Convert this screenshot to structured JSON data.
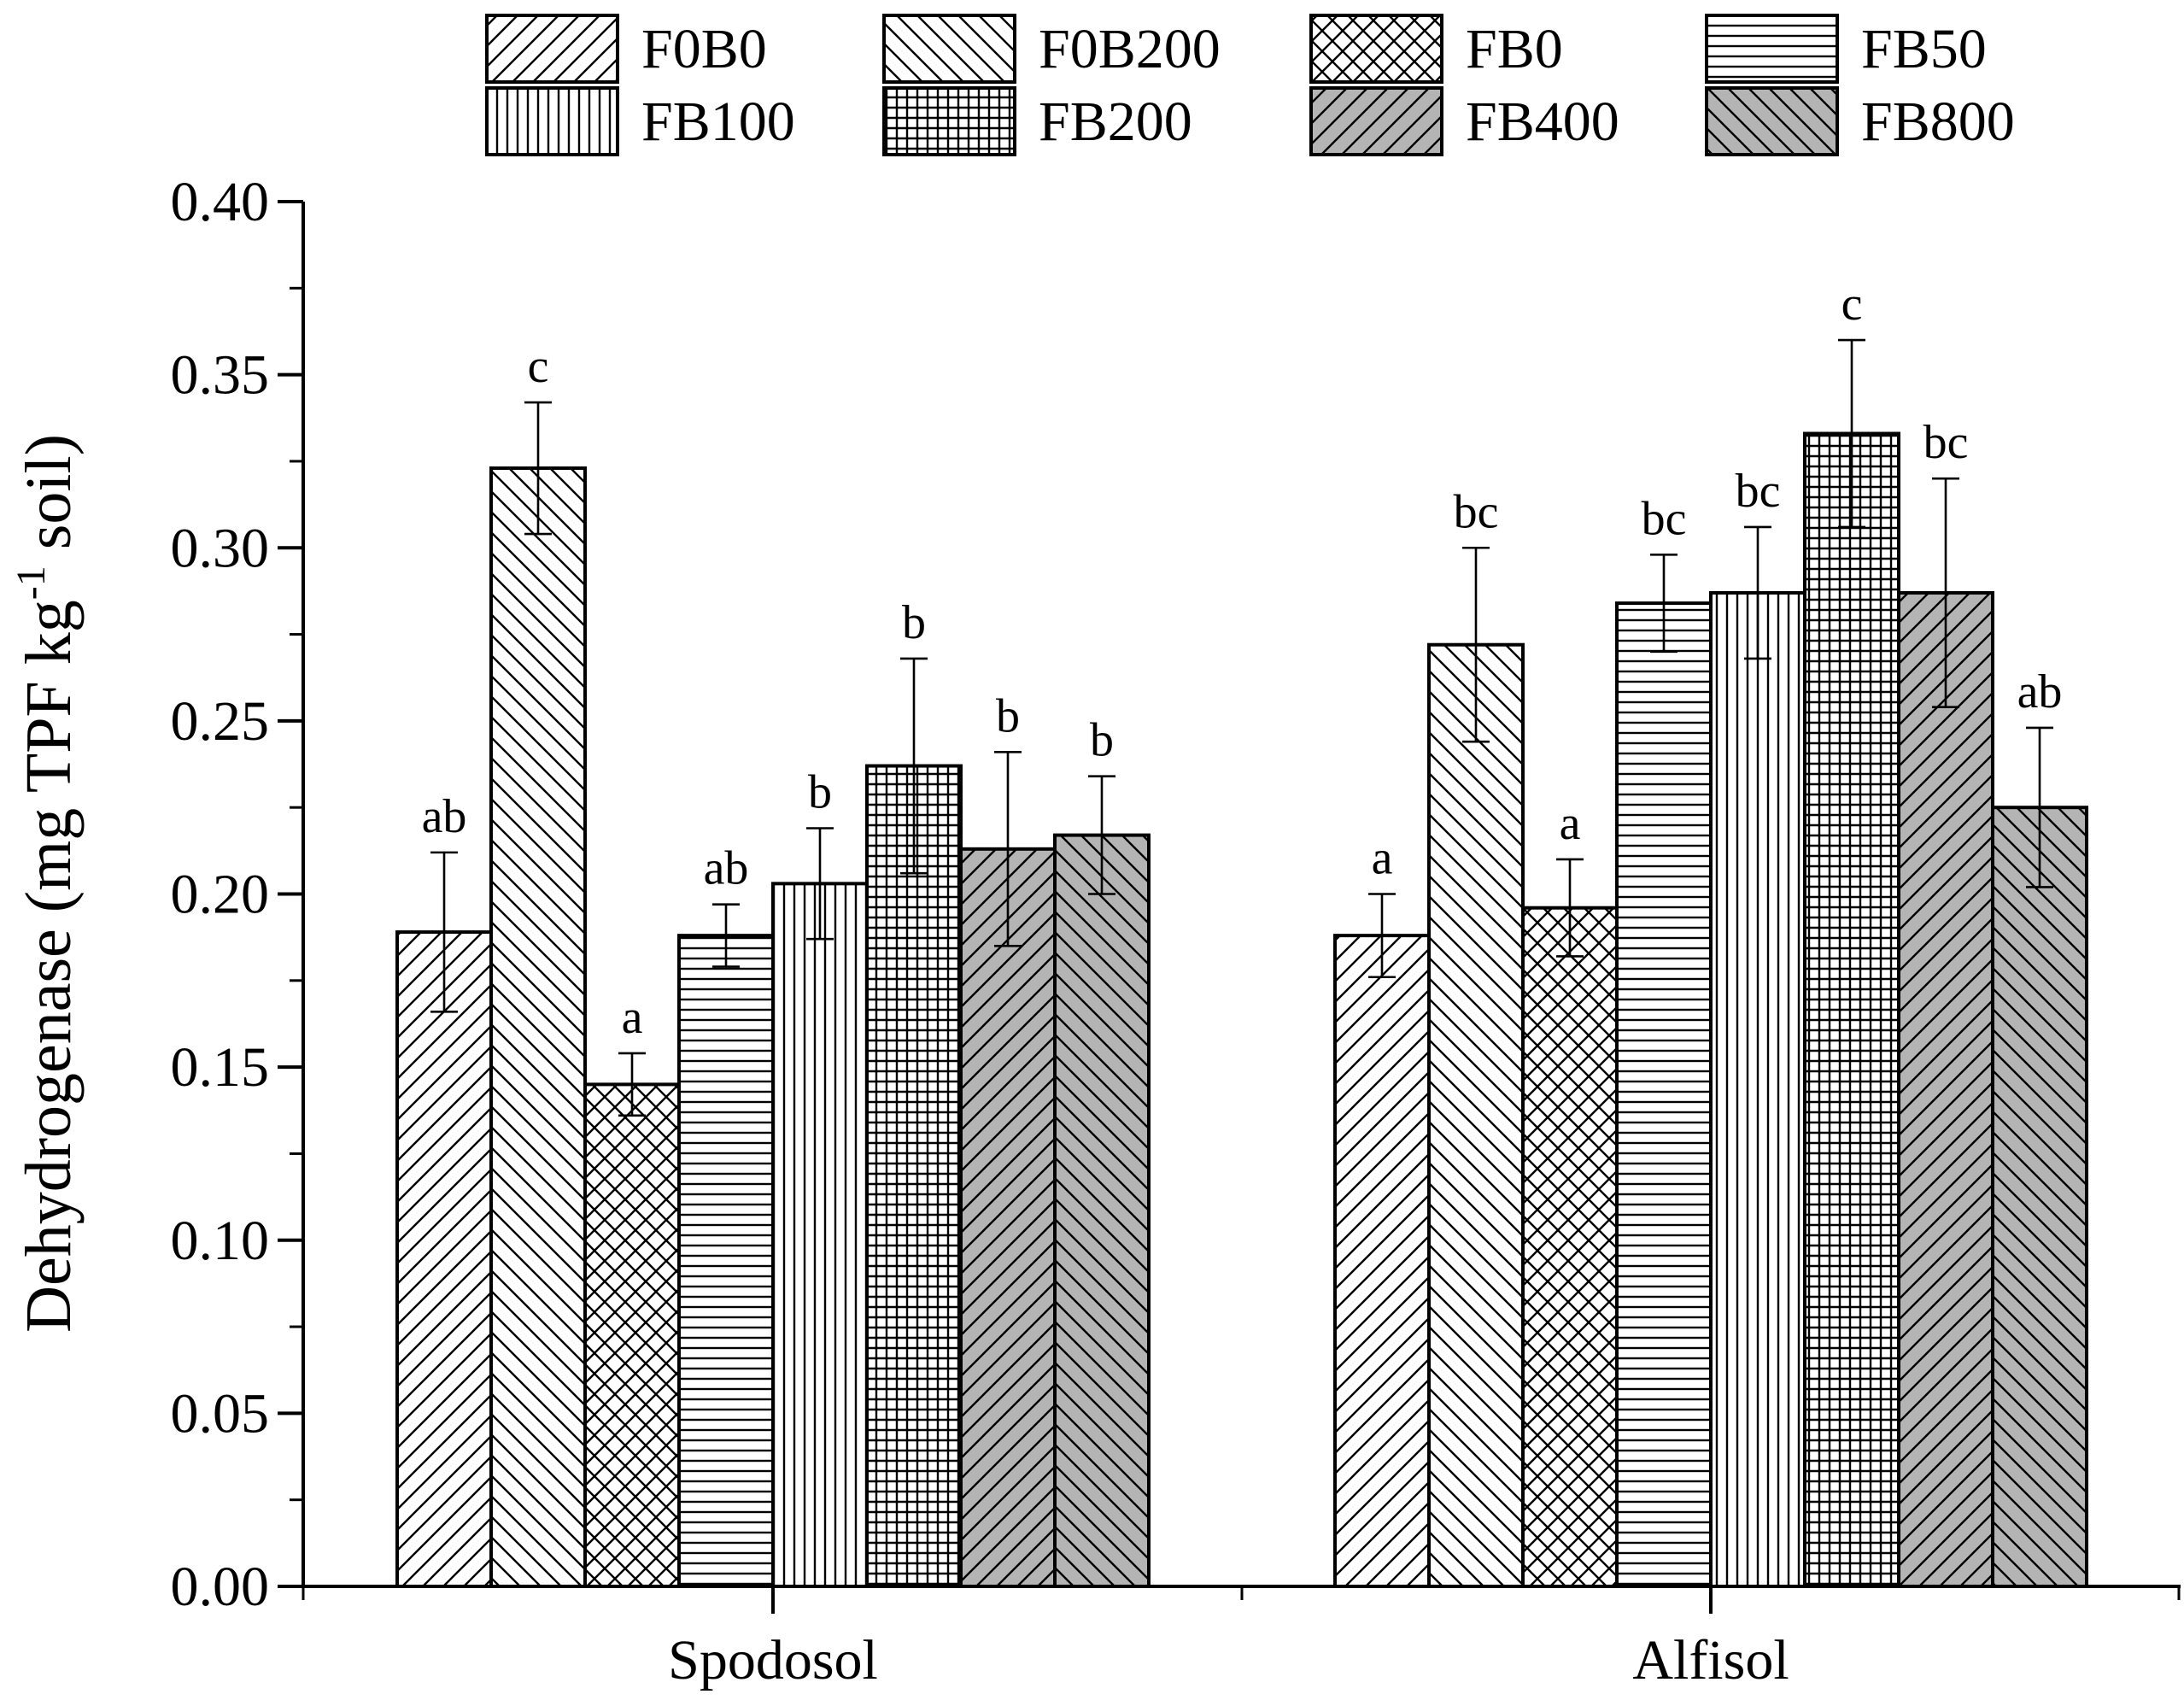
{
  "chart_data": {
    "type": "bar",
    "title": "",
    "xlabel": "",
    "ylabel": {
      "prefix": "Dehydrogenase (mg TPF kg",
      "superscript": "-1",
      "suffix": " soil)"
    },
    "ylim": [
      0,
      0.4
    ],
    "yticks": [
      "0.00",
      "0.05",
      "0.10",
      "0.15",
      "0.20",
      "0.25",
      "0.30",
      "0.35",
      "0.40"
    ],
    "categories": [
      "Spodosol",
      "Alfisol"
    ],
    "legend_position": "top",
    "series": [
      {
        "name": "F0B0",
        "pattern": "diag-fwd",
        "fill": "#ffffff",
        "values": [
          0.189,
          0.188
        ],
        "errors": [
          0.023,
          0.012
        ],
        "letters": [
          "ab",
          "a"
        ]
      },
      {
        "name": "F0B200",
        "pattern": "diag-back",
        "fill": "#ffffff",
        "values": [
          0.323,
          0.272
        ],
        "errors": [
          0.019,
          0.028
        ],
        "letters": [
          "c",
          "bc"
        ]
      },
      {
        "name": "FB0",
        "pattern": "crosshatch",
        "fill": "#ffffff",
        "values": [
          0.145,
          0.196
        ],
        "errors": [
          0.009,
          0.014
        ],
        "letters": [
          "a",
          "a"
        ]
      },
      {
        "name": "FB50",
        "pattern": "horizontal",
        "fill": "#ffffff",
        "values": [
          0.188,
          0.284
        ],
        "errors": [
          0.009,
          0.014
        ],
        "letters": [
          "ab",
          "bc"
        ]
      },
      {
        "name": "FB100",
        "pattern": "vertical",
        "fill": "#ffffff",
        "values": [
          0.203,
          0.287
        ],
        "errors": [
          0.016,
          0.019
        ],
        "letters": [
          "b",
          "bc"
        ]
      },
      {
        "name": "FB200",
        "pattern": "grid",
        "fill": "#ffffff",
        "values": [
          0.237,
          0.333
        ],
        "errors": [
          0.031,
          0.027
        ],
        "letters": [
          "b",
          "c"
        ]
      },
      {
        "name": "FB400",
        "pattern": "diag-fwd",
        "fill": "#b4b4b4",
        "values": [
          0.213,
          0.287
        ],
        "errors": [
          0.028,
          0.033
        ],
        "letters": [
          "b",
          "bc"
        ]
      },
      {
        "name": "FB800",
        "pattern": "diag-back",
        "fill": "#b4b4b4",
        "values": [
          0.217,
          0.225
        ],
        "errors": [
          0.017,
          0.023
        ],
        "letters": [
          "b",
          "ab"
        ]
      }
    ]
  }
}
